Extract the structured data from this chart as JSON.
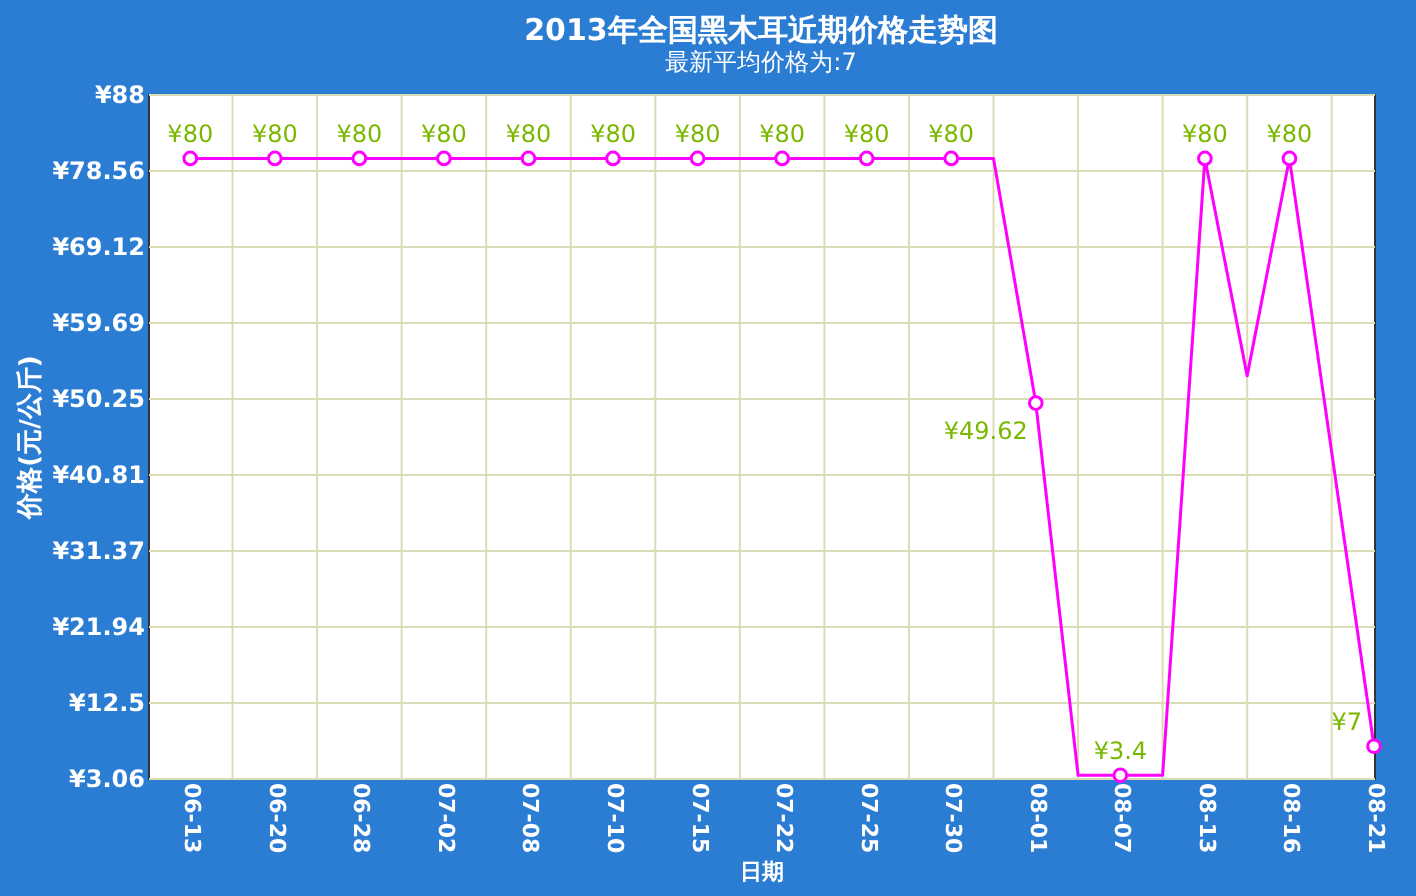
{
  "chart_data": {
    "type": "line",
    "title": "2013年全国黑木耳近期价格走势图",
    "subtitle": "最新平均价格为:7",
    "xlabel": "日期",
    "ylabel": "价格(元/公斤)",
    "categories": [
      "06-13",
      null,
      "06-20",
      null,
      "06-28",
      null,
      "07-02",
      null,
      "07-08",
      null,
      "07-10",
      null,
      "07-15",
      null,
      "07-22",
      null,
      "07-25",
      null,
      "07-30",
      null,
      "08-01",
      null,
      "08-07",
      null,
      "08-13",
      null,
      "08-16",
      null,
      "08-21"
    ],
    "series": [
      {
        "color": "#ff00ff",
        "marker": "none",
        "line_style": "solid",
        "values": [
          80,
          80,
          80,
          80,
          80,
          80,
          80,
          80,
          80,
          80,
          80,
          80,
          80,
          80,
          80,
          80,
          80,
          80,
          80,
          80,
          49.62,
          3.4,
          3.4,
          3.4,
          80,
          53,
          80,
          43.5,
          7
        ]
      },
      {
        "type": "scatter",
        "color": "#ff00ff",
        "marker": "circle",
        "values": [
          80,
          null,
          80,
          null,
          80,
          null,
          80,
          null,
          80,
          null,
          80,
          null,
          80,
          null,
          80,
          null,
          80,
          null,
          80,
          null,
          49.62,
          null,
          3.4,
          null,
          80,
          null,
          80,
          null,
          7
        ],
        "value_labels": [
          "¥80",
          null,
          "¥80",
          null,
          "¥80",
          null,
          "¥80",
          null,
          "¥80",
          null,
          "¥80",
          null,
          "¥80",
          null,
          "¥80",
          null,
          "¥80",
          null,
          "¥80",
          null,
          "¥49.62",
          null,
          "¥3.4",
          null,
          "¥80",
          null,
          "¥80",
          null,
          "¥7"
        ]
      }
    ],
    "ylim": [
      3.06,
      88
    ],
    "yticks": [
      {
        "value": 3.06,
        "label": "¥3.06"
      },
      {
        "value": 12.5,
        "label": "¥12.5"
      },
      {
        "value": 21.94,
        "label": "¥21.94"
      },
      {
        "value": 31.37,
        "label": "¥31.37"
      },
      {
        "value": 40.81,
        "label": "¥40.81"
      },
      {
        "value": 50.25,
        "label": "¥50.25"
      },
      {
        "value": 59.69,
        "label": "¥59.69"
      },
      {
        "value": 69.12,
        "label": "¥69.12"
      },
      {
        "value": 78.56,
        "label": "¥78.56"
      },
      {
        "value": 88,
        "label": "¥88"
      }
    ],
    "grid": true
  }
}
